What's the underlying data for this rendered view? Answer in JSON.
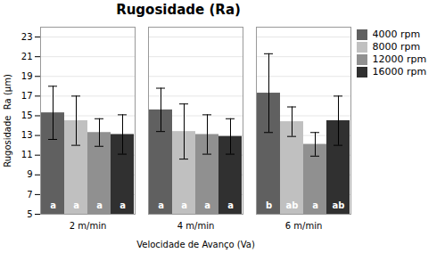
{
  "chart_data": {
    "type": "bar",
    "title": "Rugosidade (Ra)",
    "xlabel": "Velocidade de Avanço (Va)",
    "ylabel": "Rugosidade  Ra (μm)",
    "categories": [
      "2 m/min",
      "4 m/min",
      "6 m/min"
    ],
    "series": [
      {
        "name": "4000 rpm",
        "color": "#606060",
        "values": [
          15.3,
          15.6,
          17.3
        ],
        "errors": [
          2.7,
          2.2,
          4.0
        ],
        "annotations": [
          "a",
          "a",
          "b"
        ]
      },
      {
        "name": "8000 rpm",
        "color": "#c0c0c0",
        "values": [
          14.5,
          13.4,
          14.4
        ],
        "errors": [
          2.5,
          2.8,
          1.5
        ],
        "annotations": [
          "a",
          "a",
          "ab"
        ]
      },
      {
        "name": "12000 rpm",
        "color": "#909090",
        "values": [
          13.3,
          13.1,
          12.1
        ],
        "errors": [
          1.4,
          2.0,
          1.2
        ],
        "annotations": [
          "a",
          "a",
          "a"
        ]
      },
      {
        "name": "16000 rpm",
        "color": "#303030",
        "values": [
          13.1,
          12.9,
          14.5
        ],
        "errors": [
          2.0,
          1.8,
          2.5
        ],
        "annotations": [
          "a",
          "a",
          "ab"
        ]
      }
    ],
    "ylim": [
      5,
      24
    ],
    "yticks": [
      5,
      7,
      9,
      11,
      13,
      15,
      17,
      19,
      21,
      23
    ],
    "grid": true,
    "legend": "right"
  }
}
